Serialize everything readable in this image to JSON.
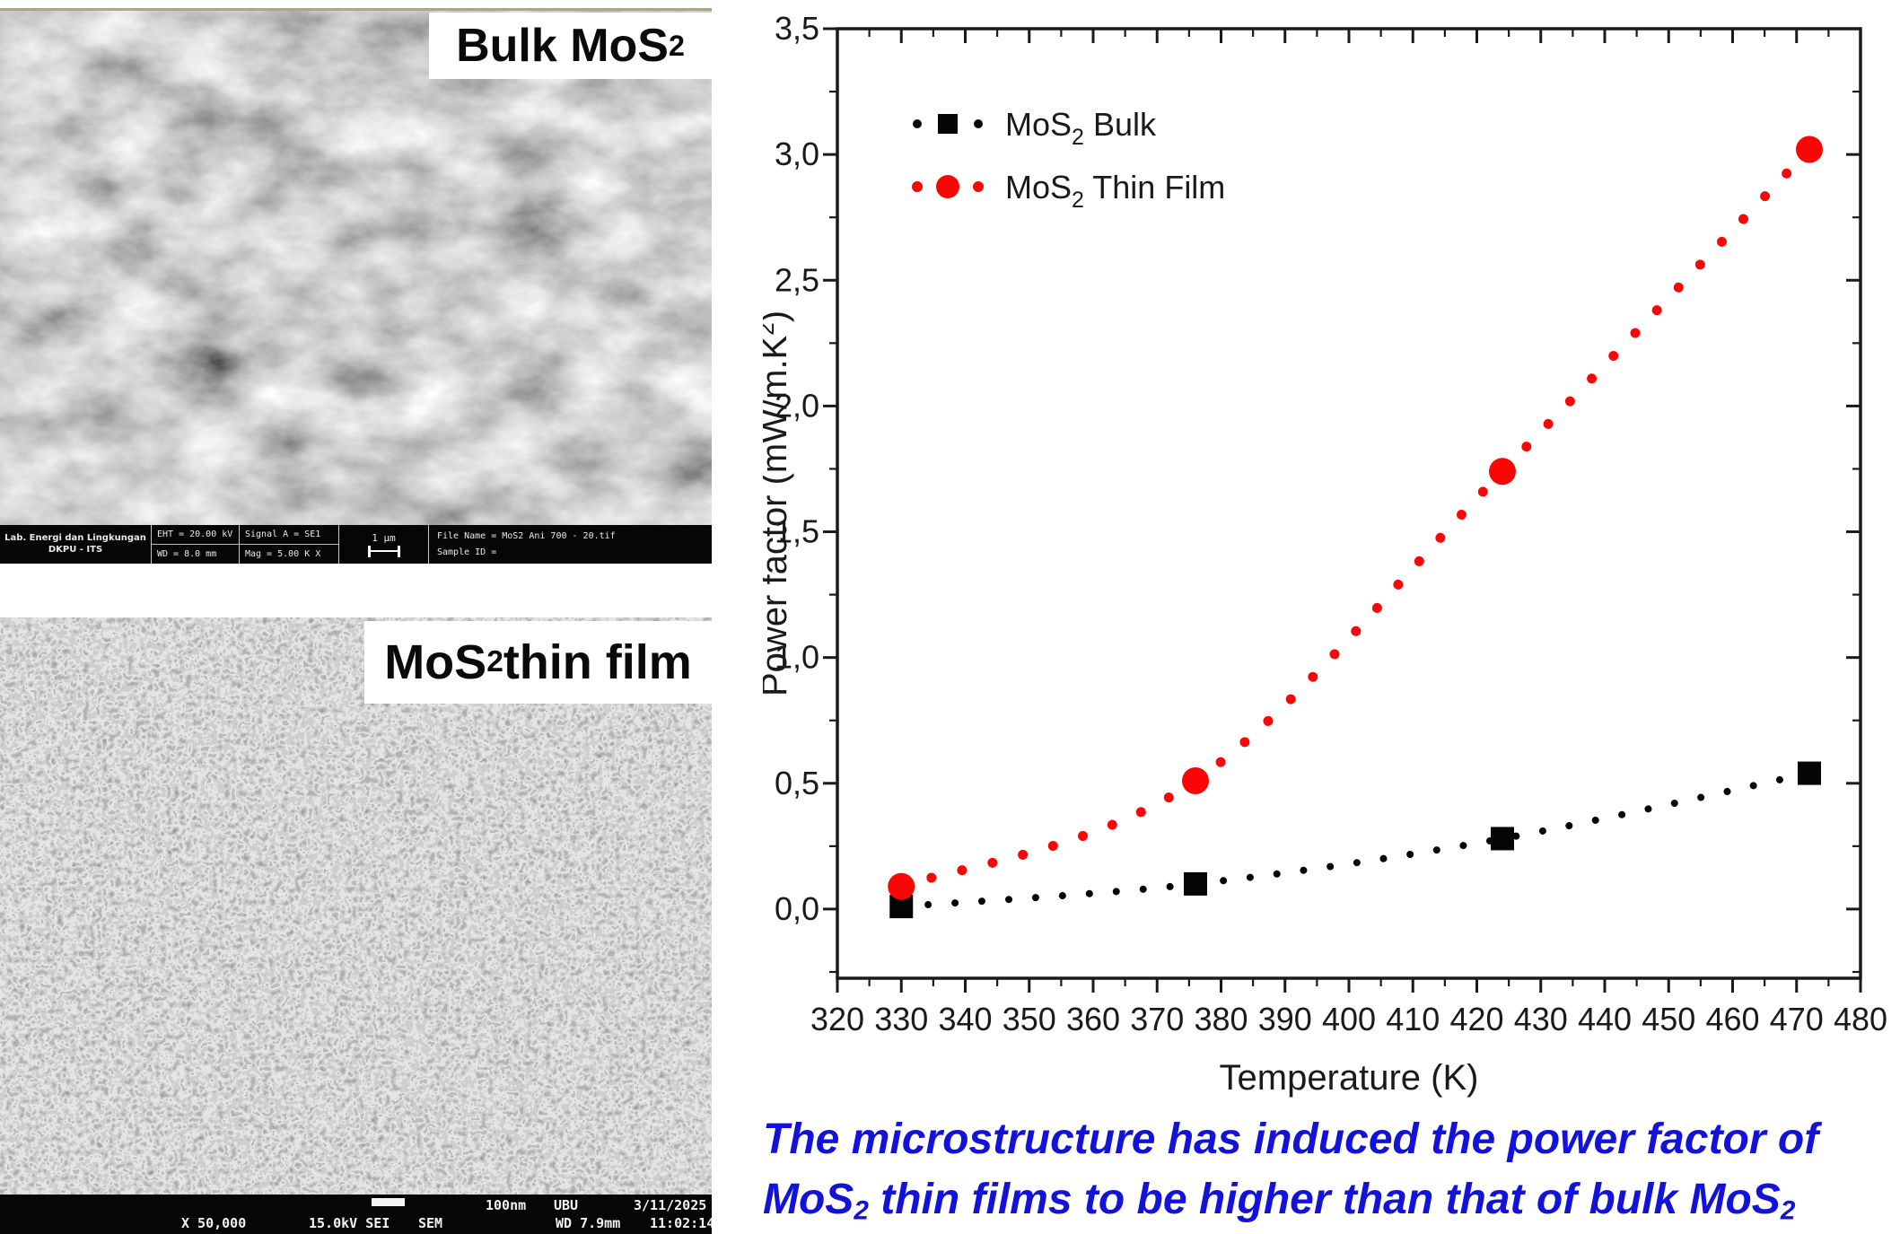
{
  "figure": {
    "sem_top": {
      "label": [
        {
          "t": "Bulk MoS"
        },
        {
          "t": "2",
          "sub": true
        }
      ],
      "info_bar": {
        "lab_line1": "Lab. Energi dan Lingkungan",
        "lab_line2": "DKPU - ITS",
        "eht": "EHT = 20.00 kV",
        "wd": "WD = 8.0 mm",
        "signal": "Signal A = SE1",
        "mag": "Mag = 5.00 K X",
        "scale": "1 μm",
        "file_name": "File Name = MoS2 Ani 700 - 20.tif",
        "sample_id": "Sample ID ="
      }
    },
    "sem_bottom": {
      "label": [
        {
          "t": "MoS"
        },
        {
          "t": "2",
          "sub": true
        },
        {
          "t": " thin film"
        }
      ],
      "info_bar": {
        "scale_label": "100nm",
        "facility": "UBU",
        "date": "3/11/2025",
        "mag": "X 50,000",
        "kv": "15.0kV SEI",
        "mode": "SEM",
        "wd": "WD 7.9mm",
        "time": "11:02:14"
      }
    },
    "caption": {
      "color": "#1212d9",
      "line1": [
        {
          "t": "The microstructure has induced the power factor of"
        }
      ],
      "line2": [
        {
          "t": "MoS"
        },
        {
          "t": "2",
          "sub": true
        },
        {
          "t": " thin films to be higher than that of bulk MoS"
        },
        {
          "t": "2",
          "sub": true
        }
      ]
    }
  },
  "chart_data": {
    "type": "scatter",
    "title": "",
    "x": [
      330,
      376,
      424,
      472
    ],
    "series": [
      {
        "name_pre": "MoS",
        "name_sub": "2",
        "name_post": " Bulk",
        "color": "#050505",
        "marker": "square",
        "values": [
          0.01,
          0.1,
          0.28,
          0.54
        ]
      },
      {
        "name_pre": "MoS",
        "name_sub": "2",
        "name_post": " Thin Film",
        "color": "#fb0606",
        "marker": "circle",
        "values": [
          0.09,
          0.51,
          1.74,
          3.02
        ]
      }
    ],
    "xlabel": "Temperature (K)",
    "ylabel_pre": "Power factor (mW/m.K",
    "ylabel_sup": "2",
    "ylabel_post": ")",
    "xlim": [
      320,
      480
    ],
    "ylim": [
      -0.275,
      3.5
    ],
    "x_ticks": [
      320,
      330,
      340,
      350,
      360,
      370,
      380,
      390,
      400,
      410,
      420,
      430,
      440,
      450,
      460,
      470,
      480
    ],
    "x_minor_step": 5,
    "y_ticks": [
      0.0,
      0.5,
      1.0,
      1.5,
      2.0,
      2.5,
      3.0,
      3.5
    ],
    "y_minor_step": 0.25,
    "decimal_separator": ",",
    "line_style": "dotted",
    "legend_position": "top-left",
    "grid": false,
    "axis_color": "#1a1a1a"
  }
}
